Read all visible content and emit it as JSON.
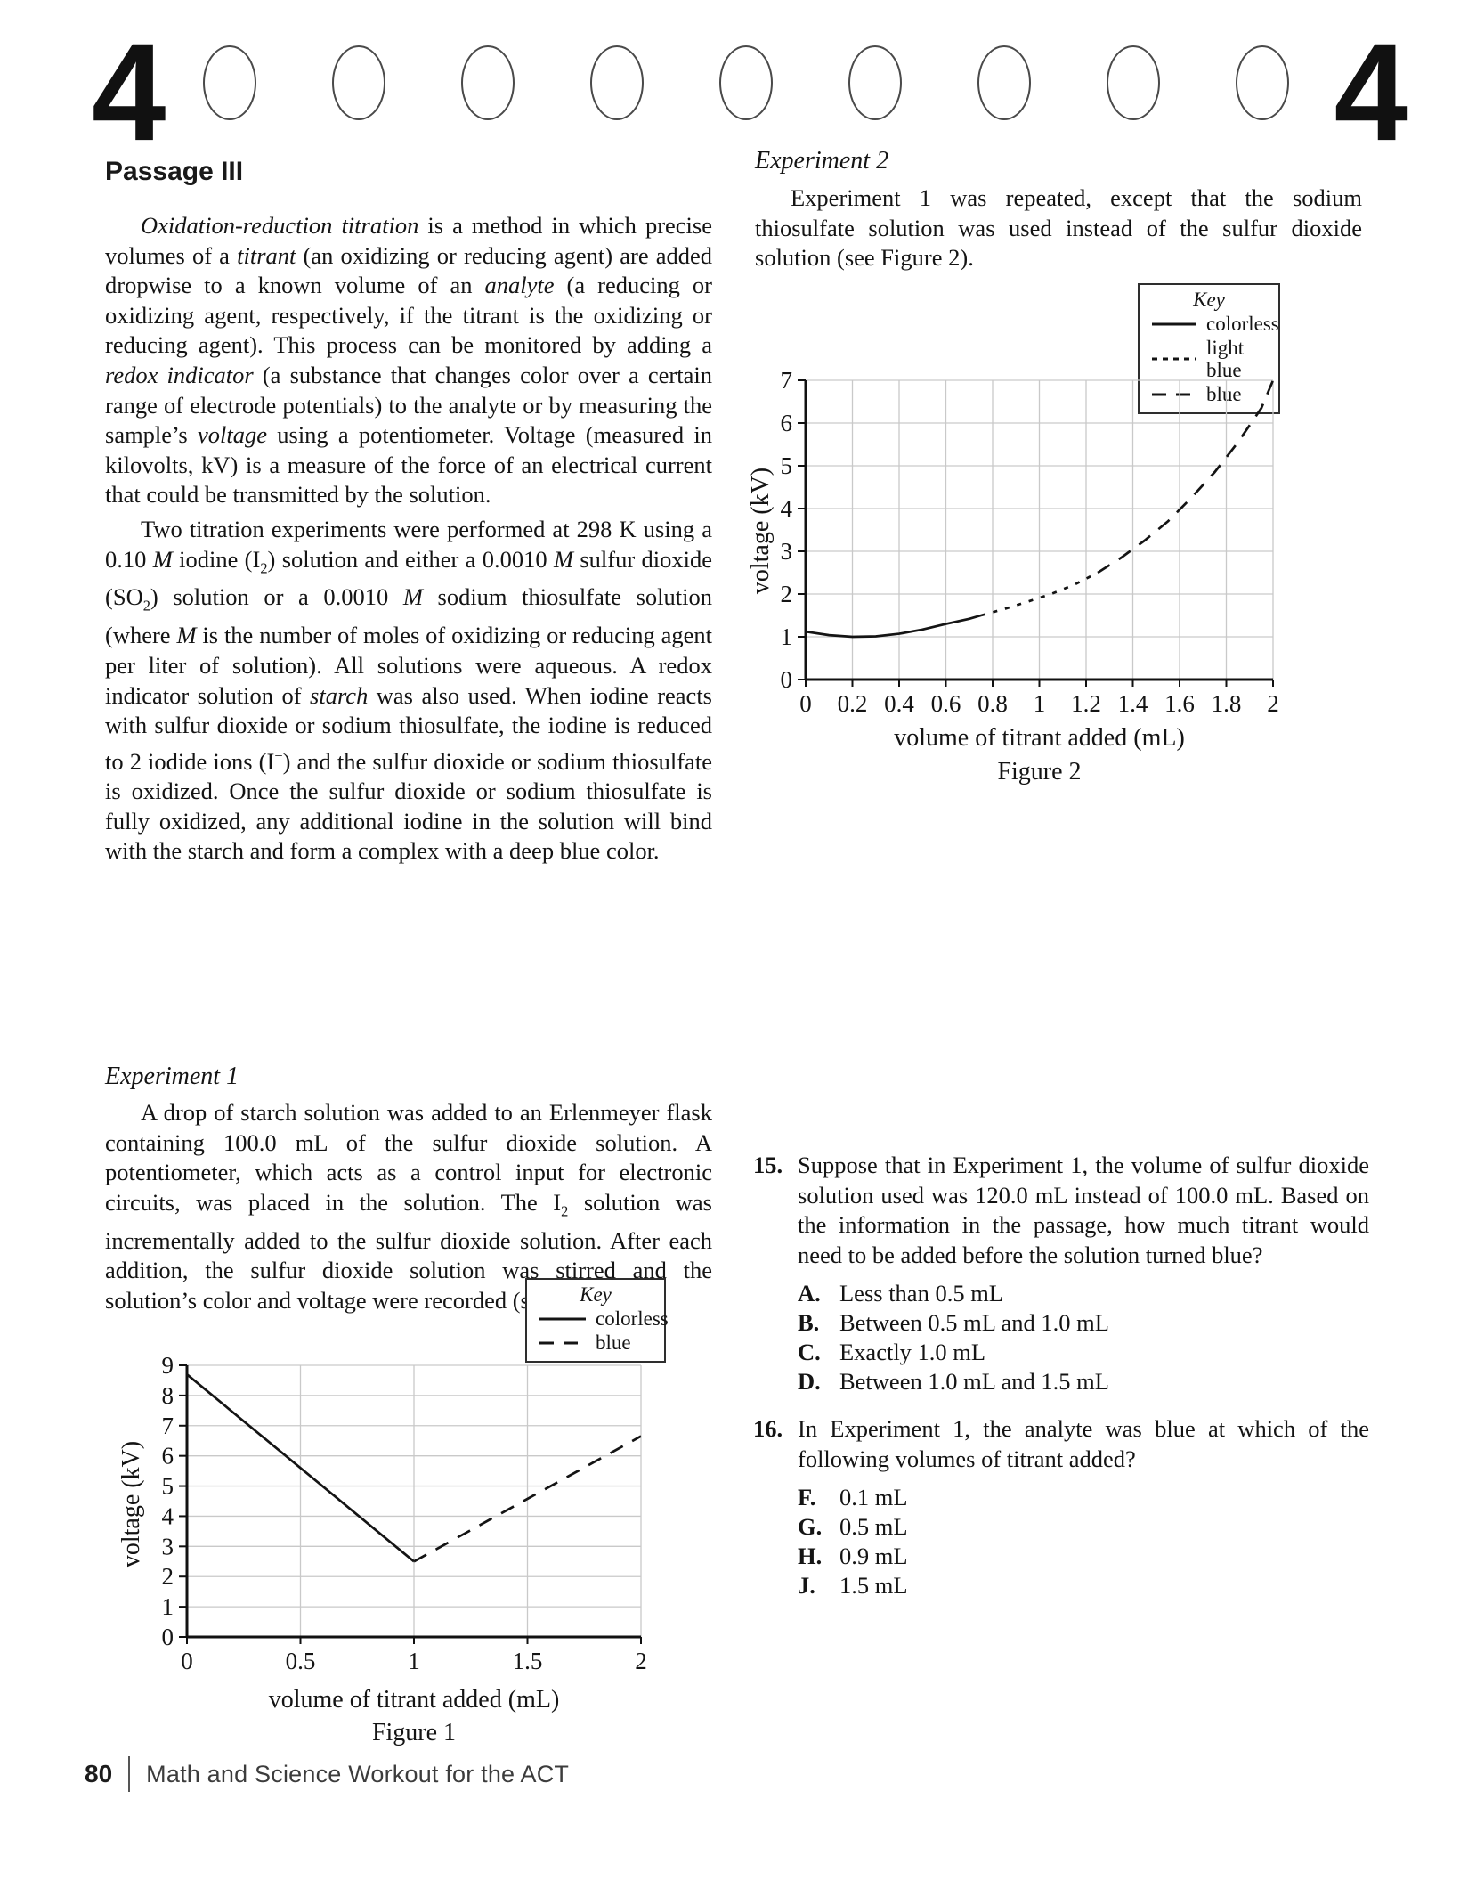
{
  "page": {
    "number_left": "4",
    "number_right": "4",
    "bubble_count": 9,
    "footer": {
      "page_number": "80",
      "book_title": "Math and Science Workout for the ACT"
    }
  },
  "passage": {
    "heading": "Passage III",
    "paragraph1": [
      {
        "t": "Oxidation-reduction titration",
        "s": "i"
      },
      {
        "t": " is a method in which precise volumes of a "
      },
      {
        "t": "titrant",
        "s": "i"
      },
      {
        "t": " (an oxidizing or reducing agent) are added dropwise to a known volume of an "
      },
      {
        "t": "analyte",
        "s": "i"
      },
      {
        "t": " (a reducing or oxidizing agent, respectively, if the titrant is the oxidizing or reducing agent). This process can be monitored by adding a "
      },
      {
        "t": "redox indicator",
        "s": "i"
      },
      {
        "t": " (a substance that changes color over a certain range of electrode potentials) to the analyte or by measuring the sample’s "
      },
      {
        "t": "voltage",
        "s": "i"
      },
      {
        "t": " using a potentiometer. Voltage (measured in kilovolts, kV) is a measure of the force of an electrical current that could be transmitted by the solution."
      }
    ],
    "paragraph2": [
      {
        "t": "Two titration experiments were performed at 298 K using a 0.10 "
      },
      {
        "t": "M",
        "s": "i"
      },
      {
        "t": " iodine (I"
      },
      {
        "t": "2",
        "s": "sub"
      },
      {
        "t": ") solution and either a 0.0010 "
      },
      {
        "t": "M",
        "s": "i"
      },
      {
        "t": " sulfur dioxide (SO"
      },
      {
        "t": "2",
        "s": "sub"
      },
      {
        "t": ") solution or a 0.0010 "
      },
      {
        "t": "M",
        "s": "i"
      },
      {
        "t": " sodium thiosulfate solution (where "
      },
      {
        "t": "M",
        "s": "i"
      },
      {
        "t": " is the number of moles of oxidizing or reducing agent per liter of solution). All solutions were aqueous. A redox indicator solution of "
      },
      {
        "t": "starch",
        "s": "i"
      },
      {
        "t": " was also used. When iodine reacts with sulfur dioxide or sodium thiosulfate, the iodine is reduced to 2 iodide ions (I"
      },
      {
        "t": "−",
        "s": "sup"
      },
      {
        "t": ") and the sulfur dioxide or sodium thiosulfate is oxidized. Once the sulfur dioxide or sodium thiosulfate is fully oxidized, any additional iodine in the solution will bind with the starch and form a complex with a deep blue color."
      }
    ]
  },
  "experiment1": {
    "heading": "Experiment 1",
    "paragraph": [
      {
        "t": "A drop of starch solution was added to an Erlenmeyer flask containing 100.0 mL of the sulfur dioxide solution. A potentiometer, which acts as a control input for electronic circuits, was placed in the solution. The I"
      },
      {
        "t": "2",
        "s": "sub"
      },
      {
        "t": " solution was incrementally added to the sulfur dioxide solution. After each addition, the sulfur dioxide solution was stirred and the solution’s color and voltage were recorded (see Figure 1)."
      }
    ]
  },
  "experiment2": {
    "heading": "Experiment 2",
    "paragraph": [
      {
        "t": "Experiment 1 was repeated, except that the sodium thiosulfate solution was used instead of the sulfur dioxide solution (see Figure 2)."
      }
    ]
  },
  "figure1": {
    "caption": "Figure 1",
    "key": {
      "title": "Key",
      "entries": [
        {
          "style": "solid",
          "label": "colorless"
        },
        {
          "style": "dashed",
          "label": "blue"
        }
      ]
    },
    "chart": {
      "type": "line",
      "xlabel": "volume of titrant added (mL)",
      "ylabel": "voltage (kV)",
      "xlim": [
        0,
        2
      ],
      "ylim": [
        0,
        9
      ],
      "xticks": [
        0,
        0.5,
        1,
        1.5,
        2
      ],
      "xtick_labels": [
        "0",
        "0.5",
        "1",
        "1.5",
        "2"
      ],
      "yticks": [
        0,
        1,
        2,
        3,
        4,
        5,
        6,
        7,
        8,
        9
      ],
      "series": [
        {
          "name": "colorless",
          "style": "solid",
          "points": [
            [
              0,
              8.7
            ],
            [
              1,
              2.5
            ]
          ]
        },
        {
          "name": "blue",
          "style": "dashed",
          "points": [
            [
              1,
              2.5
            ],
            [
              2,
              6.65
            ]
          ]
        }
      ]
    }
  },
  "figure2": {
    "caption": "Figure 2",
    "key": {
      "title": "Key",
      "entries": [
        {
          "style": "solid",
          "label": "colorless"
        },
        {
          "style": "dotted",
          "label": "light blue"
        },
        {
          "style": "dashed",
          "label": "blue"
        }
      ]
    },
    "chart": {
      "type": "line",
      "xlabel": "volume of titrant added (mL)",
      "ylabel": "voltage (kV)",
      "xlim": [
        0,
        2
      ],
      "ylim": [
        0,
        7
      ],
      "xticks": [
        0,
        0.2,
        0.4,
        0.6,
        0.8,
        1,
        1.2,
        1.4,
        1.6,
        1.8,
        2
      ],
      "xtick_labels": [
        "0",
        "0.2",
        "0.4",
        "0.6",
        "0.8",
        "1",
        "1.2",
        "1.4",
        "1.6",
        "1.8",
        "2"
      ],
      "yticks": [
        0,
        1,
        2,
        3,
        4,
        5,
        6,
        7
      ],
      "series": [
        {
          "name": "colorless",
          "style": "solid",
          "points": [
            [
              0,
              1.12
            ],
            [
              0.1,
              1.04
            ],
            [
              0.2,
              1.0
            ],
            [
              0.3,
              1.01
            ],
            [
              0.4,
              1.07
            ],
            [
              0.5,
              1.17
            ],
            [
              0.6,
              1.3
            ],
            [
              0.7,
              1.42
            ],
            [
              0.75,
              1.5
            ]
          ]
        },
        {
          "name": "light blue",
          "style": "dotted",
          "points": [
            [
              0.75,
              1.5
            ],
            [
              0.85,
              1.65
            ],
            [
              0.95,
              1.82
            ],
            [
              1.05,
              2.0
            ],
            [
              1.15,
              2.22
            ],
            [
              1.25,
              2.5
            ]
          ]
        },
        {
          "name": "blue",
          "style": "dashed",
          "points": [
            [
              1.25,
              2.5
            ],
            [
              1.35,
              2.85
            ],
            [
              1.45,
              3.25
            ],
            [
              1.55,
              3.7
            ],
            [
              1.65,
              4.25
            ],
            [
              1.75,
              4.85
            ],
            [
              1.85,
              5.55
            ],
            [
              1.95,
              6.35
            ],
            [
              2,
              7.0
            ]
          ]
        }
      ]
    }
  },
  "questions": [
    {
      "number": "15.",
      "text": "Suppose that in Experiment 1, the volume of sulfur dioxide solution used was 120.0 mL instead of 100.0 mL. Based on the information in the passage, how much titrant would need to be added before the solution turned blue?",
      "options": [
        {
          "letter": "A.",
          "text": "Less than 0.5 mL"
        },
        {
          "letter": "B.",
          "text": "Between 0.5 mL and 1.0 mL"
        },
        {
          "letter": "C.",
          "text": "Exactly 1.0 mL"
        },
        {
          "letter": "D.",
          "text": "Between 1.0 mL and 1.5 mL"
        }
      ]
    },
    {
      "number": "16.",
      "text": "In Experiment 1, the analyte was blue at which of the following volumes of titrant added?",
      "options": [
        {
          "letter": "F.",
          "text": "0.1 mL"
        },
        {
          "letter": "G.",
          "text": "0.5 mL"
        },
        {
          "letter": "H.",
          "text": "0.9 mL"
        },
        {
          "letter": "J.",
          "text": "1.5 mL"
        }
      ]
    }
  ]
}
